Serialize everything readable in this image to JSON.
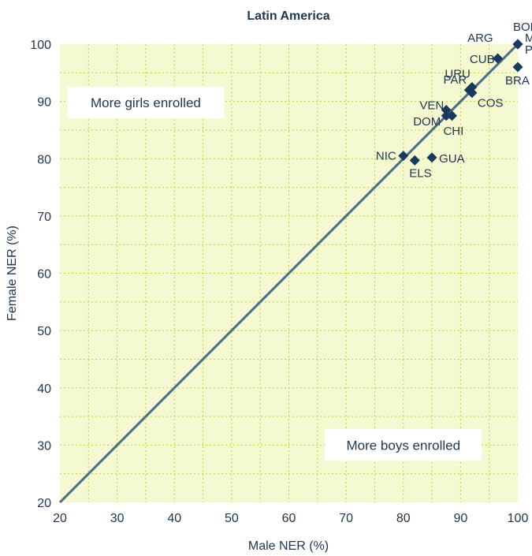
{
  "chart_data": {
    "type": "scatter",
    "title": "Latin America",
    "xlabel": "Male NER (%)",
    "ylabel": "Female NER (%)",
    "xlim": [
      20,
      100
    ],
    "ylim": [
      20,
      100
    ],
    "xticks": [
      20,
      30,
      40,
      50,
      60,
      70,
      80,
      90,
      100
    ],
    "yticks": [
      20,
      30,
      40,
      50,
      60,
      70,
      80,
      90,
      100
    ],
    "grid": true,
    "reference_line": {
      "from": [
        20,
        20
      ],
      "to": [
        100,
        100
      ]
    },
    "annotations": [
      {
        "text": "More girls enrolled",
        "x": 35,
        "y": 89.8
      },
      {
        "text": "More boys enrolled",
        "x": 80,
        "y": 30
      }
    ],
    "points": [
      {
        "label": "BOL",
        "x": 100,
        "y": 100
      },
      {
        "label": "MEX",
        "x": 100,
        "y": 100
      },
      {
        "label": "PER",
        "x": 100,
        "y": 100
      },
      {
        "label": "ARG",
        "x": 96.5,
        "y": 97.5
      },
      {
        "label": "CUB",
        "x": 96.5,
        "y": 97.5
      },
      {
        "label": "BRA",
        "x": 100,
        "y": 96
      },
      {
        "label": "URU",
        "x": 92,
        "y": 92.5
      },
      {
        "label": "PAR",
        "x": 91.5,
        "y": 92
      },
      {
        "label": "COS",
        "x": 92,
        "y": 91.5
      },
      {
        "label": "VEN",
        "x": 87.5,
        "y": 88.5
      },
      {
        "label": "DOM",
        "x": 87.5,
        "y": 87.5
      },
      {
        "label": "CHI",
        "x": 88.5,
        "y": 87.5
      },
      {
        "label": "NIC",
        "x": 80,
        "y": 80.5
      },
      {
        "label": "ELS",
        "x": 82,
        "y": 79.7
      },
      {
        "label": "GUA",
        "x": 85,
        "y": 80.2
      }
    ]
  },
  "colors": {
    "plot_bg": "#f4f9d2",
    "grid": "#b9d63a",
    "diagonal": "#4f6b88",
    "marker": "#1a3a5c",
    "text": "#1f3550"
  }
}
